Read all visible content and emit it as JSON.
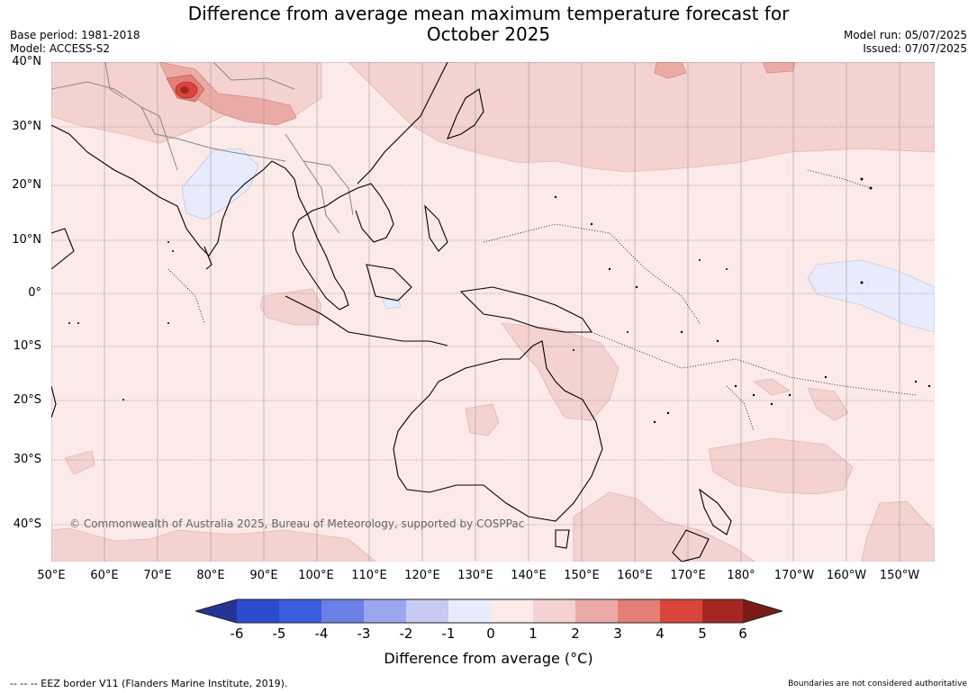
{
  "header": {
    "title_line1": "Difference from average mean maximum temperature forecast for",
    "title_line2": "October 2025",
    "base_period": "Base period: 1981-2018",
    "model": "Model: ACCESS-S2",
    "model_run": "Model run: 05/07/2025",
    "issued": "Issued: 07/07/2025"
  },
  "map": {
    "ocean_background": "#fbeae8",
    "lat_labels": [
      "40°N",
      "30°N",
      "20°N",
      "10°N",
      "0°",
      "10°S",
      "20°S",
      "30°S",
      "40°S"
    ],
    "lon_labels": [
      "50°E",
      "60°E",
      "70°E",
      "80°E",
      "90°E",
      "100°E",
      "110°E",
      "120°E",
      "130°E",
      "140°E",
      "150°E",
      "160°E",
      "170°E",
      "180°",
      "170°W",
      "160°W",
      "150°W"
    ],
    "copyright": "© Commonwealth of Australia 2025, Bureau of Meteorology, supported by COSPPac"
  },
  "colorbar": {
    "colors": [
      "#253494",
      "#2c4cd0",
      "#3b5ee0",
      "#6b80e6",
      "#9aa7ee",
      "#c5cbf5",
      "#e8ebfb",
      "#fbeae8",
      "#f4d2cf",
      "#ecaaa6",
      "#e57f76",
      "#d9453b",
      "#a62722",
      "#7a1a17"
    ],
    "tick_labels": [
      "-6",
      "-5",
      "-4",
      "-3",
      "-2",
      "-1",
      "0",
      "1",
      "2",
      "3",
      "4",
      "5",
      "6"
    ],
    "title": "Difference from average (°C)"
  },
  "footer": {
    "left": "--  --  -- EEZ border V11 (Flanders Marine Institute, 2019).",
    "right": "Boundaries are not considered authoritative"
  }
}
